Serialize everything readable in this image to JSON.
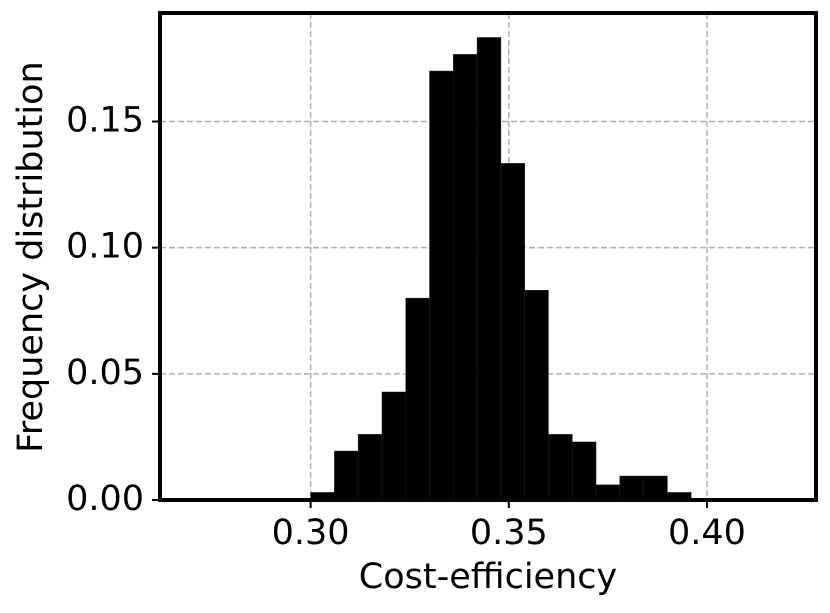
{
  "chart_data": {
    "type": "histogram",
    "xlabel": "Cost-efficiency",
    "ylabel": "Frequency distribution",
    "bins": [
      0.3,
      0.306,
      0.312,
      0.318,
      0.324,
      0.33,
      0.336,
      0.342,
      0.348,
      0.354,
      0.36,
      0.366,
      0.372,
      0.378,
      0.384,
      0.39,
      0.396
    ],
    "values": [
      0.003,
      0.0194,
      0.026,
      0.0428,
      0.08,
      0.17,
      0.1766,
      0.1833,
      0.1334,
      0.0831,
      0.026,
      0.023,
      0.006,
      0.0095,
      0.0095,
      0.003
    ],
    "color": "#000000",
    "xlim": [
      0.262,
      0.4275
    ],
    "ylim": [
      0,
      0.193
    ],
    "xticks": [
      {
        "value": 0.3,
        "label": "0.30"
      },
      {
        "value": 0.35,
        "label": "0.35"
      },
      {
        "value": 0.4,
        "label": "0.40"
      }
    ],
    "yticks": [
      {
        "value": 0.0,
        "label": "0.00"
      },
      {
        "value": 0.05,
        "label": "0.05"
      },
      {
        "value": 0.1,
        "label": "0.10"
      },
      {
        "value": 0.15,
        "label": "0.15"
      }
    ],
    "grid": true
  }
}
